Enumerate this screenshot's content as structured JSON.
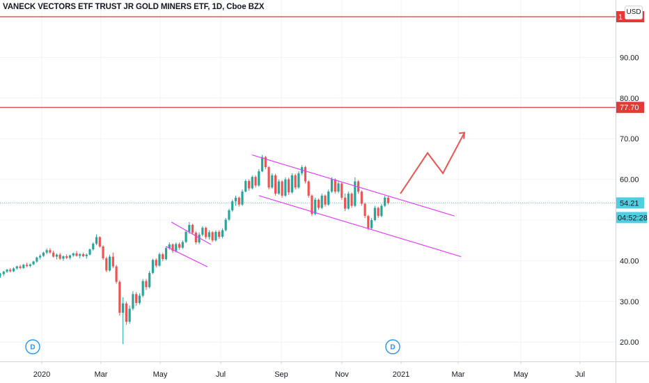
{
  "chart_data": {
    "type": "candlestick",
    "title": "VANECK VECTORS ETF TRUST JR GOLD MINERS ETF, 1D, Cboe BZX",
    "currency": "USD",
    "ylim": [
      17,
      103
    ],
    "y_ticks": [
      20,
      30,
      40,
      50,
      60,
      70,
      80,
      90
    ],
    "y_tick_labels": [
      "20.00",
      "30.00",
      "40.00",
      "50.00",
      "60.00",
      "70.00",
      "80.00",
      "90.00"
    ],
    "x_ticks": [
      "2020",
      "Mar",
      "May",
      "Jul",
      "Sep",
      "Nov",
      "2021",
      "Mar",
      "May",
      "Jul"
    ],
    "grid": true,
    "series": [
      {
        "type": "ohlc",
        "up_color": "#26a69a",
        "down_color": "#ef5350",
        "points": [
          [
            36.4,
            37.0,
            35.8,
            36.7
          ],
          [
            36.7,
            37.5,
            36.2,
            37.3
          ],
          [
            37.3,
            38.0,
            37.0,
            37.8
          ],
          [
            37.8,
            38.2,
            37.1,
            37.4
          ],
          [
            37.4,
            38.4,
            37.2,
            38.1
          ],
          [
            38.1,
            38.8,
            37.8,
            38.6
          ],
          [
            38.6,
            39.0,
            37.9,
            38.2
          ],
          [
            38.2,
            39.2,
            38.0,
            39.0
          ],
          [
            39.0,
            39.5,
            38.4,
            38.7
          ],
          [
            38.7,
            39.3,
            38.3,
            39.1
          ],
          [
            39.1,
            40.0,
            38.9,
            39.8
          ],
          [
            39.8,
            41.0,
            39.5,
            40.8
          ],
          [
            40.8,
            41.6,
            40.3,
            41.2
          ],
          [
            41.2,
            42.2,
            40.9,
            42.0
          ],
          [
            42.0,
            43.0,
            41.6,
            42.6
          ],
          [
            42.6,
            43.1,
            41.7,
            42.0
          ],
          [
            42.0,
            42.5,
            40.8,
            41.0
          ],
          [
            41.0,
            41.8,
            40.3,
            41.5
          ],
          [
            41.5,
            41.9,
            40.2,
            40.5
          ],
          [
            40.5,
            41.3,
            40.0,
            41.1
          ],
          [
            41.1,
            41.6,
            40.4,
            40.7
          ],
          [
            40.7,
            41.5,
            40.3,
            41.3
          ],
          [
            41.3,
            42.0,
            40.9,
            41.8
          ],
          [
            41.8,
            42.4,
            41.0,
            41.2
          ],
          [
            41.2,
            41.9,
            40.6,
            41.6
          ],
          [
            41.6,
            42.0,
            40.9,
            41.1
          ],
          [
            41.1,
            41.8,
            40.5,
            41.5
          ],
          [
            41.5,
            43.0,
            41.3,
            42.8
          ],
          [
            42.8,
            44.5,
            42.5,
            44.2
          ],
          [
            44.2,
            46.5,
            43.8,
            45.8
          ],
          [
            45.8,
            46.0,
            43.2,
            43.5
          ],
          [
            43.5,
            43.8,
            40.2,
            40.6
          ],
          [
            40.6,
            41.0,
            37.2,
            37.6
          ],
          [
            37.6,
            41.5,
            37.3,
            41.0
          ],
          [
            41.0,
            42.0,
            38.2,
            38.6
          ],
          [
            38.6,
            39.0,
            34.3,
            34.8
          ],
          [
            34.8,
            35.2,
            26.5,
            27.2
          ],
          [
            27.2,
            31.0,
            19.5,
            29.5
          ],
          [
            29.5,
            30.0,
            24.2,
            25.0
          ],
          [
            25.0,
            29.0,
            24.5,
            28.2
          ],
          [
            28.2,
            32.5,
            27.8,
            31.8
          ],
          [
            31.8,
            32.3,
            28.9,
            29.6
          ],
          [
            29.6,
            32.0,
            29.2,
            31.4
          ],
          [
            31.4,
            35.5,
            31.0,
            35.0
          ],
          [
            35.0,
            35.5,
            32.8,
            33.5
          ],
          [
            33.5,
            37.5,
            33.2,
            37.0
          ],
          [
            37.0,
            40.5,
            36.7,
            40.2
          ],
          [
            40.2,
            40.6,
            38.3,
            38.8
          ],
          [
            38.8,
            42.0,
            38.5,
            41.6
          ],
          [
            41.6,
            42.0,
            39.9,
            40.4
          ],
          [
            40.4,
            43.5,
            40.1,
            43.1
          ],
          [
            43.1,
            44.5,
            42.7,
            44.0
          ],
          [
            44.0,
            44.3,
            41.9,
            42.4
          ],
          [
            42.4,
            44.5,
            42.0,
            44.1
          ],
          [
            44.1,
            44.5,
            42.7,
            43.2
          ],
          [
            43.2,
            45.0,
            42.9,
            44.6
          ],
          [
            44.6,
            47.5,
            44.3,
            47.1
          ],
          [
            47.1,
            49.5,
            46.6,
            48.8
          ],
          [
            48.8,
            49.1,
            46.4,
            46.9
          ],
          [
            46.9,
            47.3,
            44.0,
            44.5
          ],
          [
            44.5,
            47.0,
            44.1,
            46.4
          ],
          [
            46.4,
            48.5,
            46.0,
            48.1
          ],
          [
            48.1,
            48.4,
            45.3,
            45.8
          ],
          [
            45.8,
            47.5,
            45.2,
            47.0
          ],
          [
            47.0,
            47.3,
            44.6,
            45.0
          ],
          [
            45.0,
            47.5,
            44.7,
            47.1
          ],
          [
            47.1,
            47.5,
            45.4,
            45.9
          ],
          [
            45.9,
            48.0,
            45.5,
            47.5
          ],
          [
            47.5,
            50.5,
            47.2,
            50.1
          ],
          [
            50.1,
            52.8,
            49.8,
            52.4
          ],
          [
            52.4,
            55.0,
            52.0,
            54.6
          ],
          [
            54.6,
            56.0,
            53.5,
            55.5
          ],
          [
            55.5,
            55.8,
            53.3,
            53.8
          ],
          [
            53.8,
            57.5,
            53.5,
            57.0
          ],
          [
            57.0,
            60.0,
            56.8,
            59.6
          ],
          [
            59.6,
            60.0,
            57.2,
            57.8
          ],
          [
            57.8,
            61.0,
            57.5,
            60.6
          ],
          [
            60.6,
            61.0,
            58.0,
            58.5
          ],
          [
            58.5,
            62.5,
            58.2,
            62.0
          ],
          [
            62.0,
            66.0,
            61.8,
            65.5
          ],
          [
            65.5,
            65.8,
            62.5,
            63.0
          ],
          [
            63.0,
            63.3,
            57.5,
            58.0
          ],
          [
            58.0,
            61.5,
            57.7,
            61.0
          ],
          [
            61.0,
            61.4,
            56.0,
            56.5
          ],
          [
            56.5,
            60.0,
            56.2,
            59.5
          ],
          [
            59.5,
            59.8,
            55.5,
            56.0
          ],
          [
            56.0,
            60.5,
            55.7,
            60.0
          ],
          [
            60.0,
            60.4,
            56.2,
            56.8
          ],
          [
            56.8,
            61.5,
            56.5,
            61.0
          ],
          [
            61.0,
            61.4,
            57.5,
            58.0
          ],
          [
            58.0,
            62.0,
            57.7,
            61.5
          ],
          [
            61.5,
            63.5,
            61.0,
            63.0
          ],
          [
            63.0,
            63.3,
            59.0,
            59.5
          ],
          [
            59.5,
            59.8,
            55.5,
            56.0
          ],
          [
            56.0,
            56.3,
            51.0,
            51.5
          ],
          [
            51.5,
            55.5,
            51.2,
            55.0
          ],
          [
            55.0,
            55.3,
            52.5,
            53.0
          ],
          [
            53.0,
            56.5,
            52.7,
            56.0
          ],
          [
            56.0,
            56.3,
            53.3,
            53.8
          ],
          [
            53.8,
            57.5,
            53.5,
            57.0
          ],
          [
            57.0,
            60.5,
            56.7,
            60.0
          ],
          [
            60.0,
            60.3,
            56.5,
            57.0
          ],
          [
            57.0,
            59.5,
            56.6,
            59.0
          ],
          [
            59.0,
            59.3,
            55.0,
            55.5
          ],
          [
            55.5,
            56.5,
            52.2,
            52.8
          ],
          [
            52.8,
            57.0,
            52.5,
            56.5
          ],
          [
            56.5,
            56.8,
            53.0,
            53.5
          ],
          [
            53.5,
            60.5,
            53.2,
            59.5
          ],
          [
            59.5,
            59.8,
            56.5,
            57.0
          ],
          [
            57.0,
            57.3,
            53.5,
            54.0
          ],
          [
            54.0,
            54.3,
            50.5,
            51.0
          ],
          [
            51.0,
            51.3,
            47.5,
            48.0
          ],
          [
            48.0,
            50.5,
            47.7,
            50.0
          ],
          [
            50.0,
            53.5,
            49.7,
            53.0
          ],
          [
            53.0,
            53.3,
            50.5,
            51.0
          ],
          [
            51.0,
            54.0,
            50.7,
            53.5
          ],
          [
            53.5,
            56.0,
            53.2,
            55.5
          ],
          [
            55.5,
            56.0,
            53.8,
            54.21
          ]
        ]
      }
    ],
    "horizontal_lines": [
      {
        "value": 100.0,
        "label": "1",
        "color": "#e53935"
      },
      {
        "value": 77.7,
        "label": "77.70",
        "color": "#e53935"
      }
    ],
    "last_price": {
      "value": 54.21,
      "label": "54.21",
      "countdown": "04:52:28",
      "color": "#4dd0e1"
    },
    "drawings": {
      "flag_channel_upper": [
        [
          0.6,
          49.5
        ],
        [
          12.5,
          44.0
        ]
      ],
      "flag_channel_lower": [
        [
          0.0,
          43.5
        ],
        [
          12.5,
          38.5
        ]
      ],
      "descending_channel_upper": [
        [
          0.0,
          66.0
        ],
        [
          61.0,
          51.0
        ]
      ],
      "descending_channel_lower": [
        [
          0.0,
          56.0
        ],
        [
          61.0,
          41.0
        ]
      ],
      "projection_arrow": [
        [
          0,
          56.5
        ],
        [
          39,
          66.5
        ],
        [
          61,
          61.5
        ],
        [
          92,
          71.5
        ]
      ],
      "channel_color": "#e040fb",
      "arrow_color": "#ef5350"
    },
    "events": [
      {
        "label": "D",
        "x_index": -2
      },
      {
        "label": "D",
        "x_index": 117
      }
    ]
  }
}
